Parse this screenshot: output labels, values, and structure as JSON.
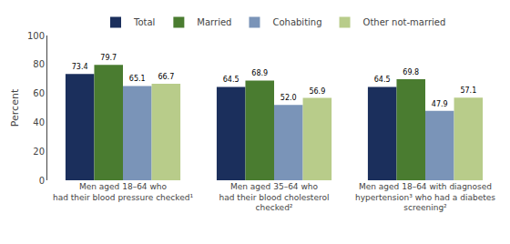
{
  "chart_data": {
    "type": "bar",
    "categories": [
      "Men aged 18–64 who\nhad their blood pressure checked¹",
      "Men aged 35–64 who\nhad their blood cholesterol\nchecked²",
      "Men aged 18–64 with diagnosed\nhypertension³ who had a diabetes\nscreening²"
    ],
    "series": [
      {
        "name": "Total",
        "color": "#1b2f5c",
        "values": [
          73.4,
          64.5,
          64.5
        ]
      },
      {
        "name": "Married",
        "color": "#4a7c30",
        "values": [
          79.7,
          68.9,
          69.8
        ]
      },
      {
        "name": "Cohabiting",
        "color": "#7a94b8",
        "values": [
          65.1,
          52.0,
          47.9
        ],
        "value_labels": [
          "65.1",
          "52.0",
          "47.9"
        ]
      },
      {
        "name": "Other not-married",
        "color": "#b8cc8a",
        "values": [
          66.7,
          56.9,
          57.1
        ]
      }
    ],
    "ylabel": "Percent",
    "ylim": [
      0,
      100
    ],
    "yticks": [
      0,
      20,
      40,
      60,
      80,
      100
    ],
    "grid": false,
    "legend": "upper center",
    "data_labels": true
  }
}
